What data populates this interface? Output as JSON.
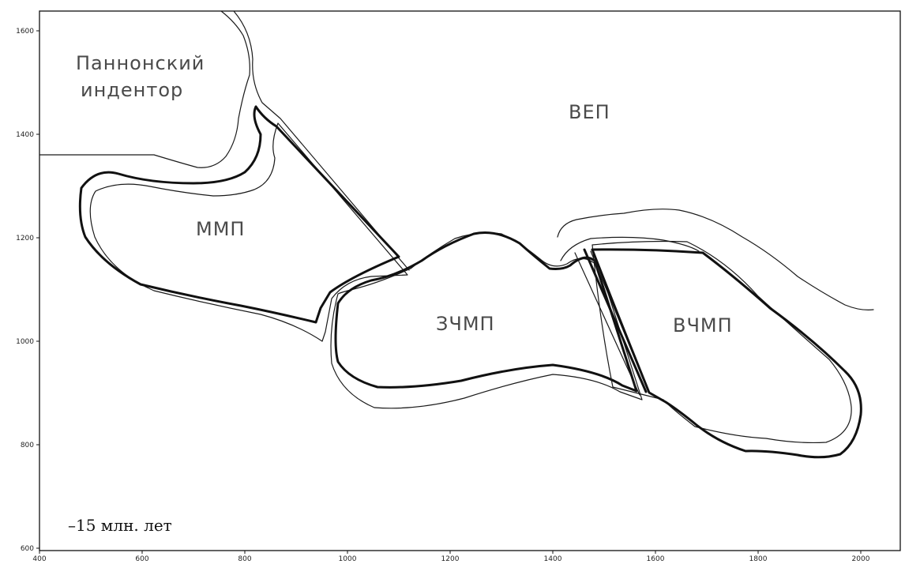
{
  "axes": {
    "x_ticks": [
      "400",
      "600",
      "800",
      "1000",
      "1200",
      "1400",
      "1600",
      "1800",
      "2000"
    ],
    "y_ticks": [
      "1600",
      "1400",
      "1200",
      "1000",
      "800",
      "600"
    ]
  },
  "regions": {
    "pannonian": [
      "Паннонский",
      "индентор"
    ],
    "vep": "ВЕП",
    "mmp": "ММП",
    "zchmp": "ЗЧМП",
    "vchmp": "ВЧМП"
  },
  "age_label": "–15 млн. лет"
}
